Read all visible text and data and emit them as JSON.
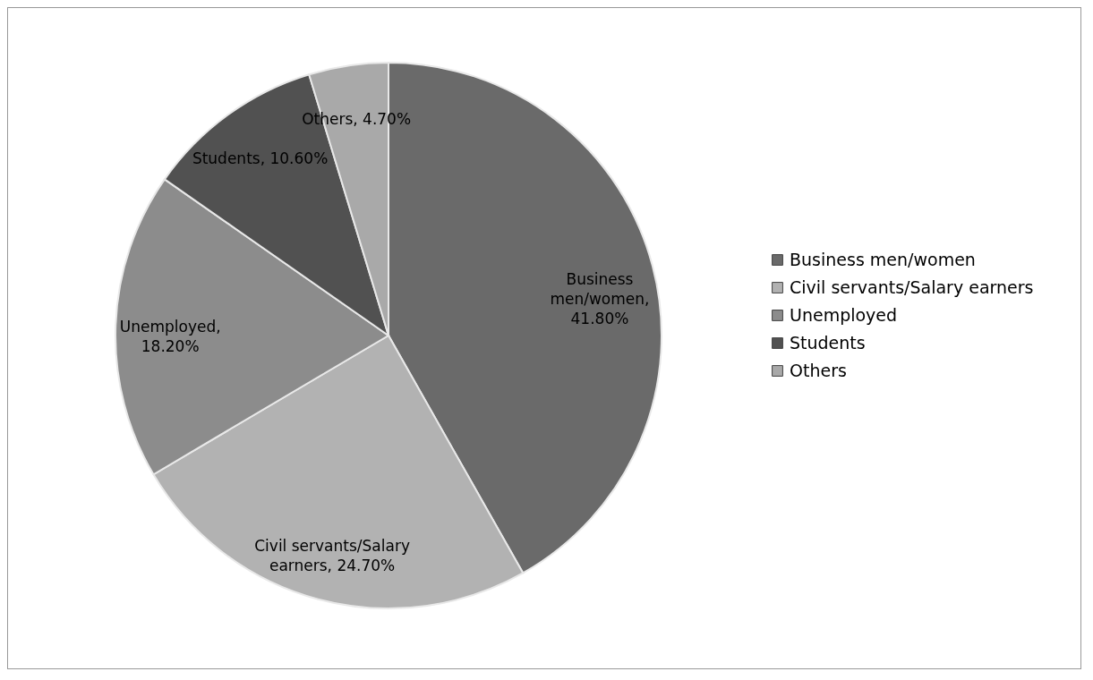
{
  "chart_data": {
    "type": "pie",
    "categories": [
      "Business men/women",
      "Civil servants/Salary earners",
      "Unemployed",
      "Students",
      "Others"
    ],
    "values": [
      41.8,
      24.7,
      18.2,
      10.6,
      4.7
    ],
    "colors": [
      "#6a6a6a",
      "#b2b2b2",
      "#8c8c8c",
      "#515151",
      "#a9a9a9"
    ],
    "value_labels": [
      "Business men/women, 41.80%",
      "Civil servants/Salary earners, 24.70%",
      "Unemployed, 18.20%",
      "Students, 10.60%",
      "Others, 4.70%"
    ],
    "legend": "right"
  }
}
